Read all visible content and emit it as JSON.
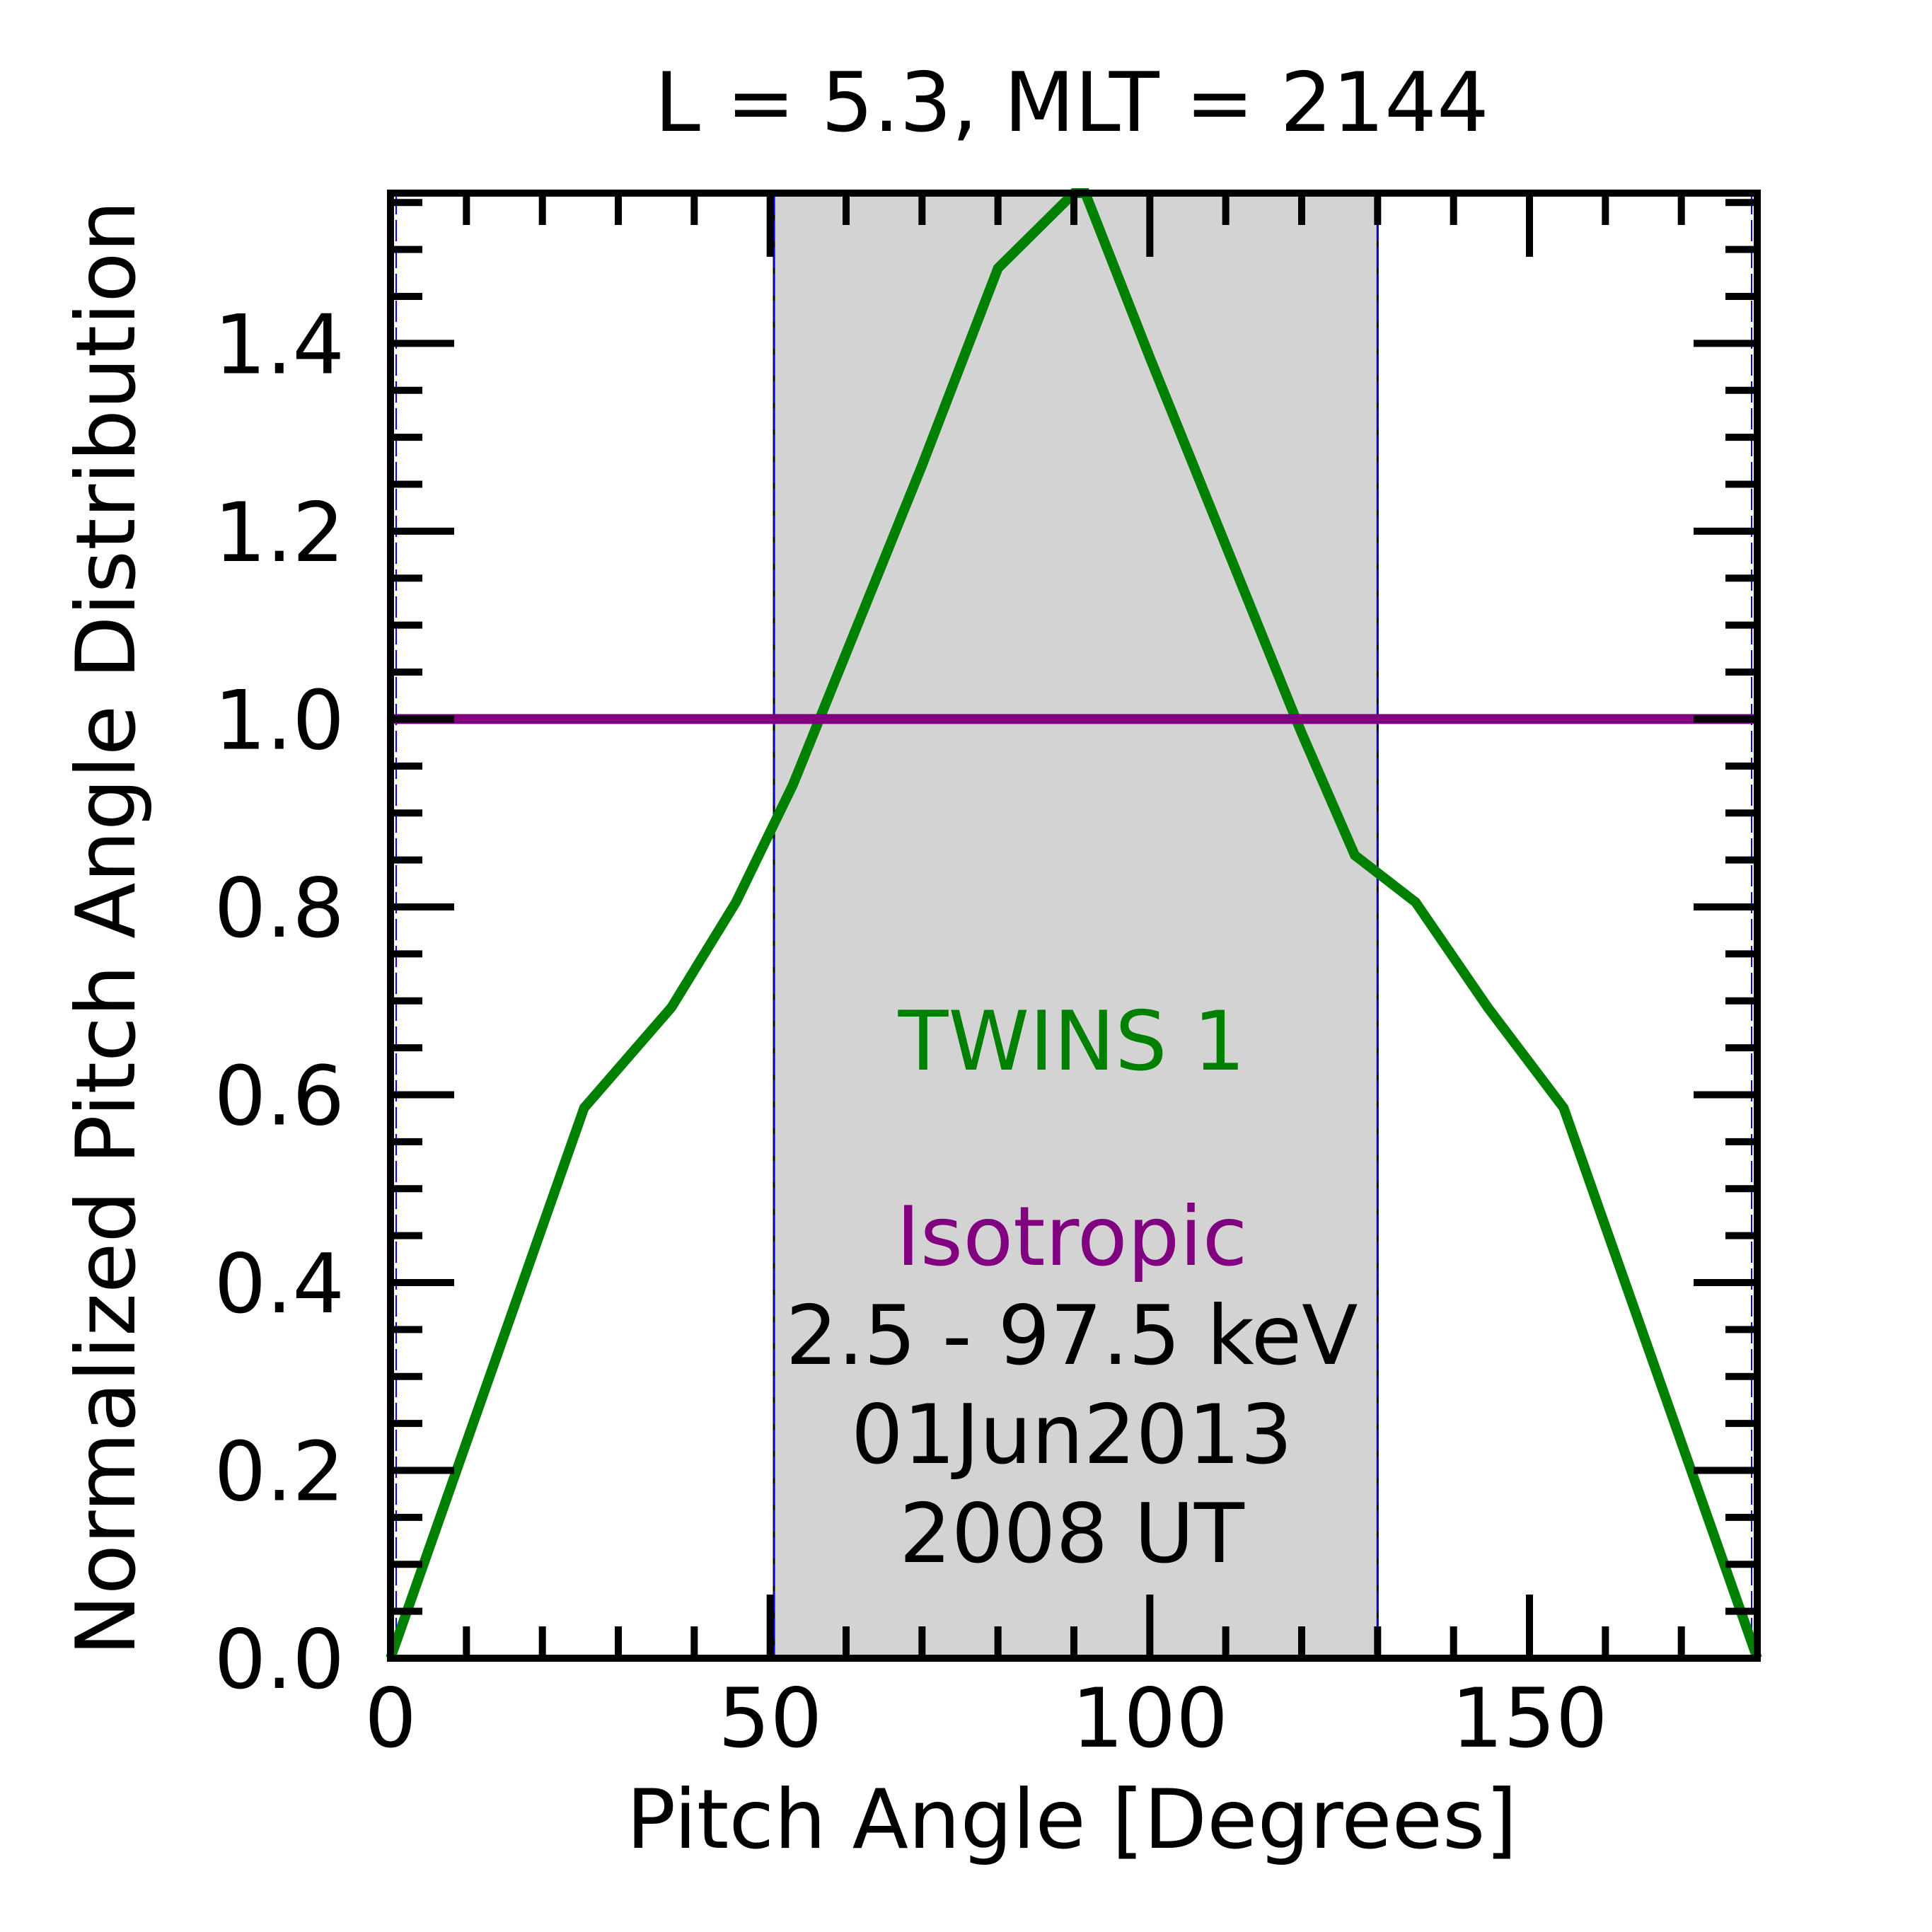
{
  "chart_data": {
    "type": "line",
    "title": "L =  5.3, MLT = 2144",
    "xlabel": "Pitch Angle [Degrees]",
    "ylabel": "Normalized Pitch Angle Distribution",
    "xlim": [
      0,
      180
    ],
    "ylim": [
      0,
      1.56
    ],
    "x_ticks": [
      0,
      50,
      100,
      150
    ],
    "x_tick_labels": [
      "0",
      "50",
      "100",
      "150"
    ],
    "y_ticks": [
      0.0,
      0.2,
      0.4,
      0.6,
      0.8,
      1.0,
      1.2,
      1.4
    ],
    "y_tick_labels": [
      "0.0",
      "0.2",
      "0.4",
      "0.6",
      "0.8",
      "1.0",
      "1.2",
      "1.4"
    ],
    "shaded_region": {
      "x": [
        50.5,
        130
      ],
      "color": "#d3d3d3"
    },
    "series": [
      {
        "name": "TWINS 1",
        "color": "#008000",
        "x": [
          0,
          25.5,
          37,
          45.5,
          53,
          60,
          70,
          80,
          90,
          91.5,
          100,
          110,
          120,
          127,
          135,
          144.5,
          154.5,
          180
        ],
        "y": [
          0.0,
          0.586,
          0.693,
          0.805,
          0.93,
          1.07,
          1.27,
          1.48,
          1.56,
          1.56,
          1.385,
          1.185,
          0.985,
          0.855,
          0.805,
          0.693,
          0.586,
          0.0
        ]
      },
      {
        "name": "Isotropic",
        "color": "#800080",
        "x": [
          0,
          180
        ],
        "y": [
          1.0,
          1.0
        ]
      }
    ],
    "annotations": {
      "twins_label": "TWINS 1",
      "isotropic_label": "Isotropic",
      "energy_range": "2.5 - 97.5 keV",
      "date": "01Jun2013",
      "time": "2008 UT"
    },
    "grid": false
  }
}
